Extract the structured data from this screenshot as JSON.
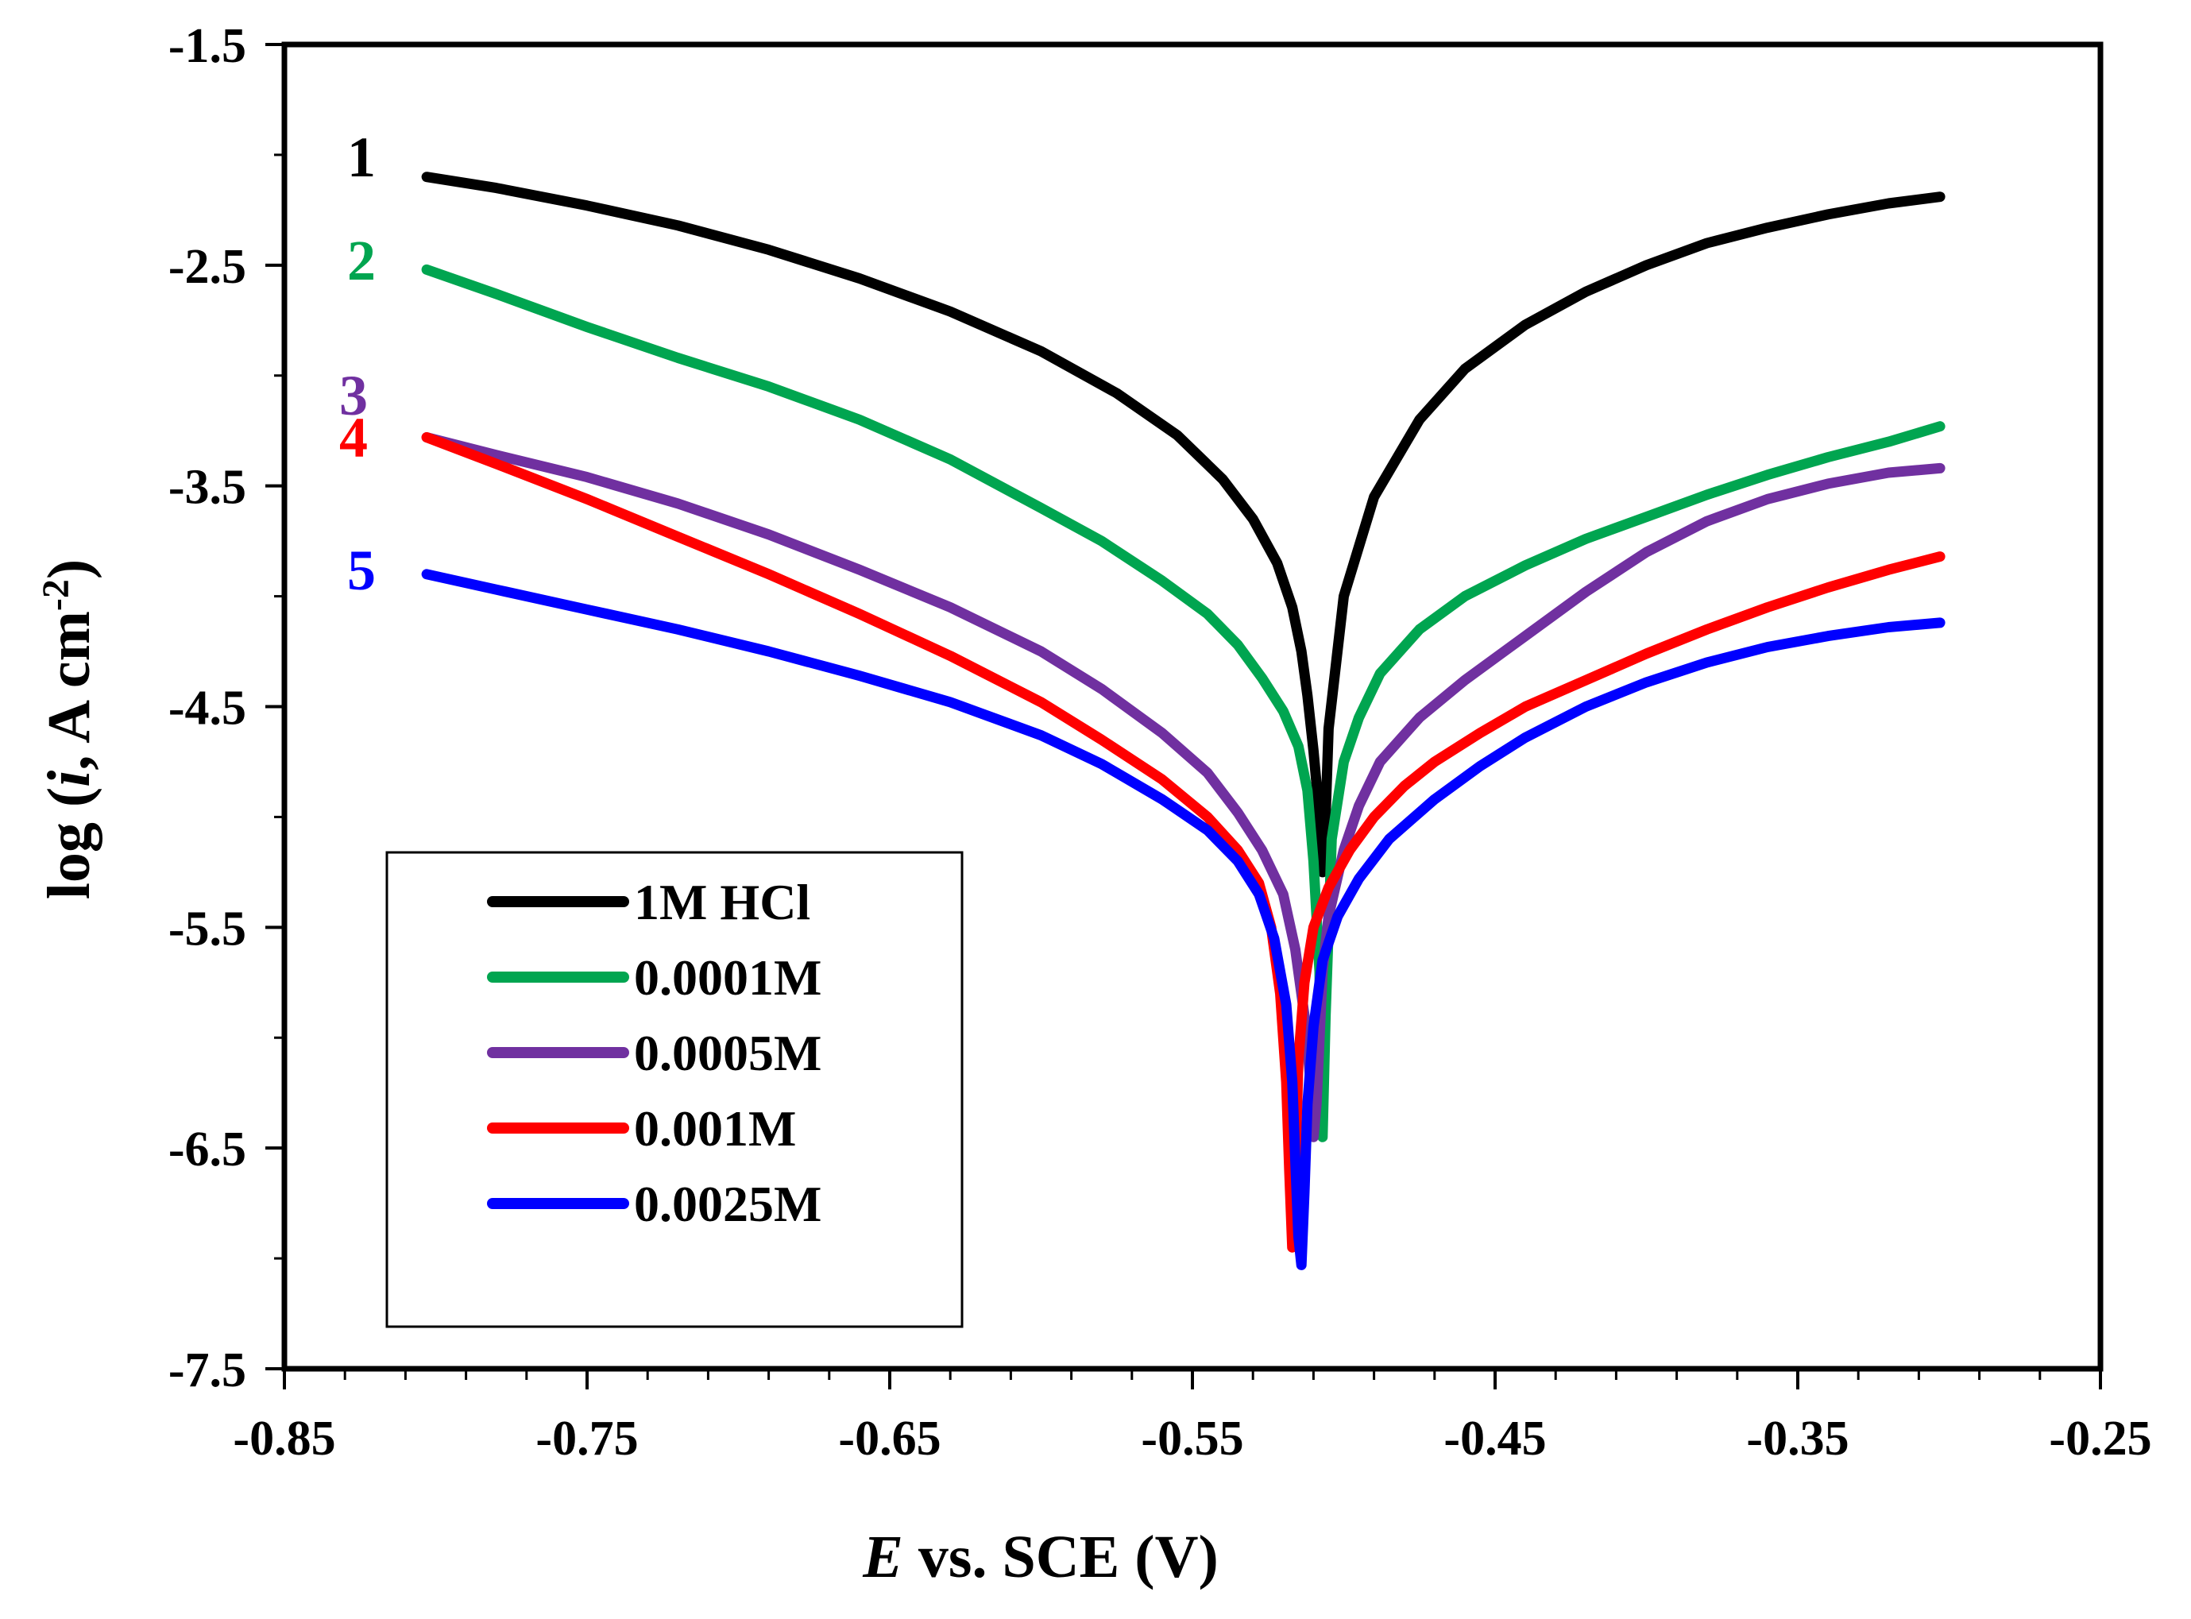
{
  "chart_data": {
    "type": "line",
    "title": "",
    "xlabel_italic": "E",
    "xlabel_rest": " vs. SCE (V)",
    "ylabel_prefix": "log (",
    "ylabel_italic": "i",
    "ylabel_mid": ", A cm",
    "ylabel_sup": "-2",
    "ylabel_suffix": ")",
    "xlim": [
      -0.85,
      -0.25
    ],
    "ylim": [
      -7.5,
      -1.5
    ],
    "x_ticks": [
      -0.85,
      -0.75,
      -0.65,
      -0.55,
      -0.45,
      -0.35,
      -0.25
    ],
    "x_tick_labels": [
      "-0.85",
      "-0.75",
      "-0.65",
      "-0.55",
      "-0.45",
      "-0.35",
      "-0.25"
    ],
    "y_ticks": [
      -1.5,
      -2.5,
      -3.5,
      -4.5,
      -5.5,
      -6.5,
      -7.5
    ],
    "y_tick_labels": [
      "-1.5",
      "-2.5",
      "-3.5",
      "-4.5",
      "-5.5",
      "-6.5",
      "-7.5"
    ],
    "grid": false,
    "legend_position": "bottom-left",
    "series": [
      {
        "name": "1M HCl",
        "label": "1",
        "color": "#000000",
        "x": [
          -0.803,
          -0.78,
          -0.75,
          -0.72,
          -0.69,
          -0.66,
          -0.63,
          -0.6,
          -0.575,
          -0.555,
          -0.54,
          -0.53,
          -0.522,
          -0.517,
          -0.514,
          -0.512,
          -0.51,
          -0.508,
          -0.507,
          -0.506,
          -0.505,
          -0.5,
          -0.49,
          -0.475,
          -0.46,
          -0.44,
          -0.42,
          -0.4,
          -0.38,
          -0.36,
          -0.34,
          -0.32,
          -0.303
        ],
        "y": [
          -2.1,
          -2.15,
          -2.23,
          -2.32,
          -2.43,
          -2.56,
          -2.71,
          -2.89,
          -3.08,
          -3.27,
          -3.47,
          -3.65,
          -3.85,
          -4.05,
          -4.25,
          -4.45,
          -4.7,
          -5.0,
          -5.25,
          -5.0,
          -4.6,
          -4.0,
          -3.55,
          -3.2,
          -2.97,
          -2.77,
          -2.62,
          -2.5,
          -2.4,
          -2.33,
          -2.27,
          -2.22,
          -2.19
        ]
      },
      {
        "name": "0.0001M",
        "label": "2",
        "color": "#00a550",
        "x": [
          -0.803,
          -0.78,
          -0.75,
          -0.72,
          -0.69,
          -0.66,
          -0.63,
          -0.6,
          -0.58,
          -0.56,
          -0.545,
          -0.535,
          -0.527,
          -0.52,
          -0.515,
          -0.512,
          -0.51,
          -0.508,
          -0.507,
          -0.506,
          -0.504,
          -0.5,
          -0.495,
          -0.488,
          -0.475,
          -0.46,
          -0.44,
          -0.42,
          -0.4,
          -0.38,
          -0.36,
          -0.34,
          -0.32,
          -0.303
        ],
        "y": [
          -2.52,
          -2.63,
          -2.78,
          -2.92,
          -3.05,
          -3.2,
          -3.38,
          -3.6,
          -3.75,
          -3.93,
          -4.08,
          -4.22,
          -4.37,
          -4.52,
          -4.68,
          -4.88,
          -5.2,
          -5.7,
          -6.45,
          -5.9,
          -5.1,
          -4.75,
          -4.55,
          -4.35,
          -4.15,
          -4.0,
          -3.86,
          -3.74,
          -3.64,
          -3.54,
          -3.45,
          -3.37,
          -3.3,
          -3.23
        ]
      },
      {
        "name": "0.0005M",
        "label": "3",
        "color": "#7030a0",
        "x": [
          -0.803,
          -0.78,
          -0.75,
          -0.72,
          -0.69,
          -0.66,
          -0.63,
          -0.6,
          -0.58,
          -0.56,
          -0.545,
          -0.535,
          -0.527,
          -0.52,
          -0.516,
          -0.513,
          -0.511,
          -0.51,
          -0.509,
          -0.508,
          -0.507,
          -0.505,
          -0.5,
          -0.495,
          -0.488,
          -0.475,
          -0.46,
          -0.44,
          -0.42,
          -0.4,
          -0.38,
          -0.36,
          -0.34,
          -0.32,
          -0.303
        ],
        "y": [
          -3.28,
          -3.36,
          -3.46,
          -3.58,
          -3.72,
          -3.88,
          -4.05,
          -4.25,
          -4.42,
          -4.62,
          -4.8,
          -4.98,
          -5.15,
          -5.35,
          -5.6,
          -5.9,
          -6.2,
          -6.45,
          -6.3,
          -6.0,
          -5.7,
          -5.45,
          -5.15,
          -4.95,
          -4.75,
          -4.55,
          -4.38,
          -4.18,
          -3.98,
          -3.8,
          -3.66,
          -3.56,
          -3.49,
          -3.44,
          -3.42
        ]
      },
      {
        "name": "0.001M",
        "label": "4",
        "color": "#ff0000",
        "x": [
          -0.803,
          -0.78,
          -0.75,
          -0.72,
          -0.69,
          -0.66,
          -0.63,
          -0.6,
          -0.58,
          -0.56,
          -0.545,
          -0.535,
          -0.528,
          -0.524,
          -0.521,
          -0.519,
          -0.518,
          -0.517,
          -0.516,
          -0.515,
          -0.513,
          -0.51,
          -0.505,
          -0.498,
          -0.49,
          -0.48,
          -0.47,
          -0.455,
          -0.44,
          -0.42,
          -0.4,
          -0.38,
          -0.36,
          -0.34,
          -0.32,
          -0.303
        ],
        "y": [
          -3.28,
          -3.4,
          -3.56,
          -3.73,
          -3.9,
          -4.08,
          -4.27,
          -4.48,
          -4.65,
          -4.83,
          -5.0,
          -5.15,
          -5.3,
          -5.5,
          -5.8,
          -6.2,
          -6.6,
          -6.95,
          -6.6,
          -6.1,
          -5.75,
          -5.5,
          -5.32,
          -5.15,
          -5.0,
          -4.86,
          -4.75,
          -4.62,
          -4.5,
          -4.38,
          -4.26,
          -4.15,
          -4.05,
          -3.96,
          -3.88,
          -3.82
        ]
      },
      {
        "name": "0.0025M",
        "label": "5",
        "color": "#0000ff",
        "x": [
          -0.803,
          -0.78,
          -0.75,
          -0.72,
          -0.69,
          -0.66,
          -0.63,
          -0.6,
          -0.58,
          -0.56,
          -0.545,
          -0.535,
          -0.528,
          -0.523,
          -0.519,
          -0.517,
          -0.516,
          -0.515,
          -0.514,
          -0.513,
          -0.512,
          -0.51,
          -0.507,
          -0.502,
          -0.495,
          -0.485,
          -0.47,
          -0.455,
          -0.44,
          -0.42,
          -0.4,
          -0.38,
          -0.36,
          -0.34,
          -0.32,
          -0.303
        ],
        "y": [
          -3.9,
          -3.97,
          -4.06,
          -4.15,
          -4.25,
          -4.36,
          -4.48,
          -4.63,
          -4.76,
          -4.92,
          -5.06,
          -5.2,
          -5.35,
          -5.55,
          -5.85,
          -6.2,
          -6.55,
          -6.9,
          -7.03,
          -6.7,
          -6.3,
          -5.95,
          -5.65,
          -5.45,
          -5.28,
          -5.1,
          -4.92,
          -4.77,
          -4.64,
          -4.5,
          -4.39,
          -4.3,
          -4.23,
          -4.18,
          -4.14,
          -4.12
        ]
      }
    ]
  }
}
